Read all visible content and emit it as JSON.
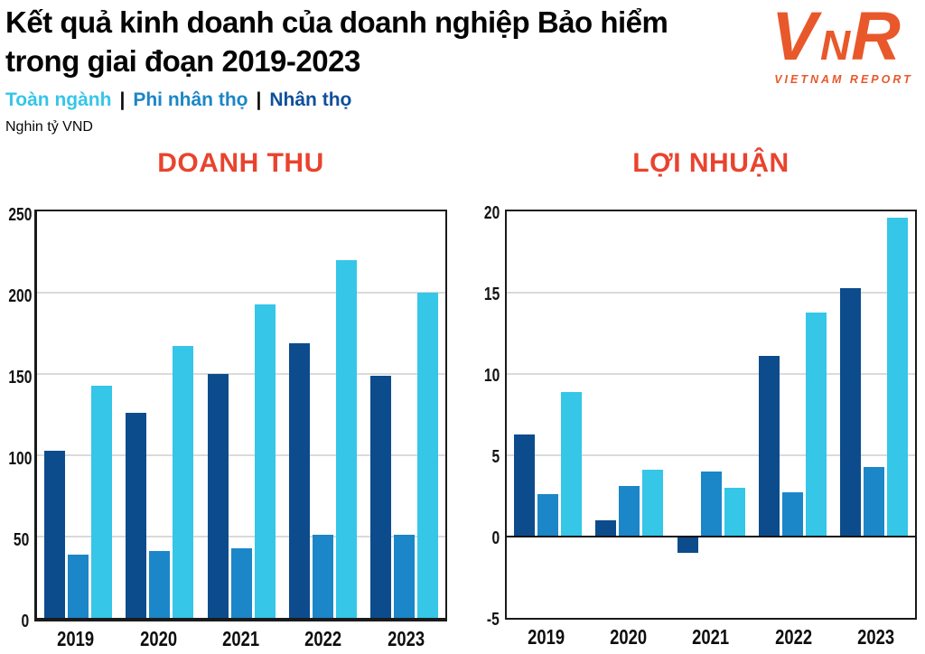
{
  "header": {
    "title_line1": "Kết quả kinh doanh của doanh nghiệp Bảo hiểm",
    "title_line2": "trong giai đoạn 2019-2023",
    "unit_label": "Nghin tỷ VND",
    "legend": {
      "separator": "|",
      "items": [
        {
          "label": "Toàn ngành",
          "slug": "toan-nganh",
          "color": "#35c6e8"
        },
        {
          "label": "Phi nhân thọ",
          "slug": "phi-nhan-tho",
          "color": "#1b86c8"
        },
        {
          "label": "Nhân thọ",
          "slug": "nhan-tho",
          "color": "#0f4f9b"
        }
      ]
    }
  },
  "logo": {
    "letters": [
      "V",
      "N",
      "R"
    ],
    "caption": "VIETNAM REPORT",
    "color": "#e8582b"
  },
  "chart_data": [
    {
      "type": "bar",
      "title": "DOANH THU",
      "unit": "Nghin tỷ VND",
      "categories": [
        "2019",
        "2020",
        "2021",
        "2022",
        "2023"
      ],
      "series": [
        {
          "name": "Nhân thọ",
          "slug": "nhan-tho",
          "color": "#0d4c8c",
          "values": [
            103,
            126,
            150,
            169,
            149
          ]
        },
        {
          "name": "Phi nhân thọ",
          "slug": "phi-nhan-tho",
          "color": "#1b86c8",
          "values": [
            39,
            41,
            43,
            51,
            51
          ]
        },
        {
          "name": "Toàn ngành",
          "slug": "toan-nganh",
          "color": "#35c6e8",
          "values": [
            143,
            167,
            193,
            220,
            200
          ]
        }
      ],
      "ylim": [
        0,
        250
      ],
      "yticks": [
        0,
        50,
        100,
        150,
        200,
        250
      ],
      "grid": true,
      "legend_position": "top-left-of-figure"
    },
    {
      "type": "bar",
      "title": "LỢI NHUẬN",
      "unit": "Nghin tỷ VND",
      "categories": [
        "2019",
        "2020",
        "2021",
        "2022",
        "2023"
      ],
      "series": [
        {
          "name": "Nhân thọ",
          "slug": "nhan-tho",
          "color": "#0d4c8c",
          "values": [
            6.3,
            1.0,
            -1.0,
            11.1,
            15.3
          ]
        },
        {
          "name": "Phi nhân thọ",
          "slug": "phi-nhan-tho",
          "color": "#1b86c8",
          "values": [
            2.6,
            3.1,
            4.0,
            2.7,
            4.3
          ]
        },
        {
          "name": "Toàn ngành",
          "slug": "toan-nganh",
          "color": "#35c6e8",
          "values": [
            8.9,
            4.1,
            3.0,
            13.8,
            19.6
          ]
        }
      ],
      "ylim": [
        -5,
        20
      ],
      "yticks": [
        -5,
        0,
        5,
        10,
        15,
        20
      ],
      "grid": true,
      "legend_position": "top-left-of-figure"
    }
  ]
}
